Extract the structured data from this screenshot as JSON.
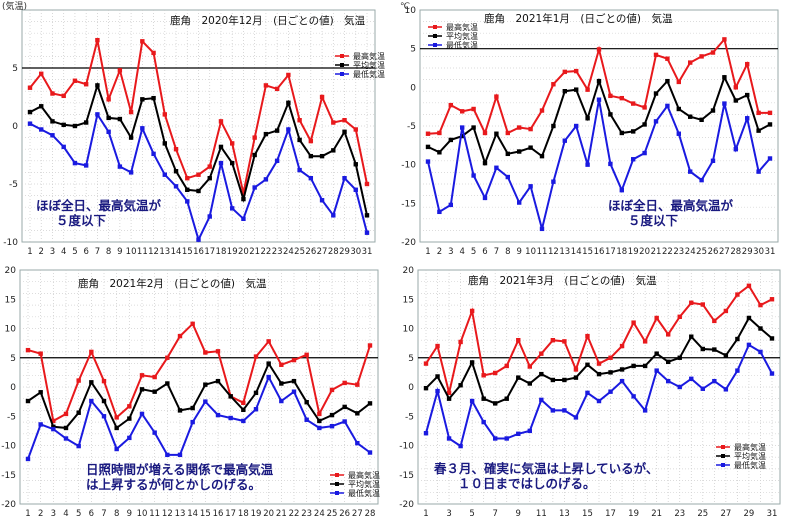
{
  "chart_data": [
    {
      "type": "line",
      "title": "鹿角　2020年12月　(日ごとの値)　気温",
      "ylabel": "",
      "corner_label": "(気温)",
      "x": [
        1,
        2,
        3,
        4,
        5,
        6,
        7,
        8,
        9,
        10,
        11,
        12,
        13,
        14,
        15,
        16,
        17,
        18,
        19,
        20,
        21,
        22,
        23,
        24,
        25,
        26,
        27,
        28,
        29,
        30,
        31
      ],
      "x_ticks": [
        1,
        2,
        3,
        4,
        5,
        6,
        7,
        8,
        9,
        10,
        11,
        12,
        13,
        14,
        15,
        16,
        17,
        18,
        19,
        20,
        21,
        22,
        23,
        24,
        25,
        26,
        27,
        28,
        29,
        30,
        31
      ],
      "ylim": [
        -10,
        10
      ],
      "y_ticks": [
        -10,
        -5,
        0,
        5
      ],
      "reference_line": 5,
      "annotation": [
        "ほぼ全日、最高気温が",
        "５度以下"
      ],
      "series": [
        {
          "name": "最高気温",
          "color": "#e8191c",
          "values": [
            3.3,
            4.5,
            2.8,
            2.6,
            3.9,
            3.6,
            7.4,
            2.3,
            4.8,
            1.2,
            7.3,
            6.3,
            1.0,
            -2.0,
            -4.5,
            -4.2,
            -3.5,
            0.4,
            -1.5,
            -5.8,
            -1.0,
            3.5,
            3.2,
            4.4,
            0.5,
            -1.3,
            2.5,
            0.3,
            0.5,
            -0.3,
            -5.0
          ]
        },
        {
          "name": "平均気温",
          "color": "#000000",
          "values": [
            1.2,
            1.7,
            0.4,
            0.1,
            0.0,
            0.3,
            3.5,
            0.7,
            0.6,
            -1.0,
            2.3,
            2.4,
            -1.5,
            -3.9,
            -5.5,
            -5.6,
            -4.5,
            -1.8,
            -3.2,
            -6.3,
            -2.5,
            -0.7,
            -0.4,
            2.0,
            -1.2,
            -2.6,
            -2.6,
            -2.1,
            -0.5,
            -3.3,
            -7.7
          ]
        },
        {
          "name": "最低気温",
          "color": "#1a1ae0",
          "values": [
            0.2,
            -0.3,
            -0.8,
            -1.8,
            -3.2,
            -3.4,
            1.0,
            -0.5,
            -3.5,
            -4.0,
            -0.2,
            -2.4,
            -4.2,
            -5.2,
            -6.5,
            -9.8,
            -7.8,
            -3.2,
            -7.1,
            -8.0,
            -5.3,
            -4.6,
            -3.0,
            -0.3,
            -3.8,
            -4.5,
            -6.4,
            -7.7,
            -4.5,
            -5.5,
            -9.2
          ]
        }
      ]
    },
    {
      "type": "line",
      "title": "鹿角　2021年1月　(日ごとの値)　気温",
      "ylabel": "",
      "corner_label": "℃",
      "x": [
        1,
        2,
        3,
        4,
        5,
        6,
        7,
        8,
        9,
        10,
        11,
        12,
        13,
        14,
        15,
        16,
        17,
        18,
        19,
        20,
        21,
        22,
        23,
        24,
        25,
        26,
        27,
        28,
        29,
        30,
        31
      ],
      "x_ticks": [
        1,
        2,
        3,
        4,
        5,
        6,
        7,
        8,
        9,
        10,
        11,
        12,
        13,
        14,
        15,
        16,
        17,
        18,
        19,
        20,
        21,
        22,
        23,
        24,
        25,
        26,
        27,
        28,
        29,
        30,
        31
      ],
      "ylim": [
        -20,
        10
      ],
      "y_ticks": [
        -20,
        -15,
        -10,
        -5,
        0,
        5,
        10
      ],
      "reference_line": 5,
      "annotation": [
        "ほぼ全日、最高気温が",
        "５度以下"
      ],
      "series": [
        {
          "name": "最高気温",
          "color": "#e8191c",
          "values": [
            -6.0,
            -5.9,
            -2.3,
            -3.1,
            -2.8,
            -5.9,
            -1.2,
            -5.9,
            -5.2,
            -5.4,
            -3.0,
            0.4,
            2.0,
            2.1,
            -0.3,
            4.9,
            -1.1,
            -1.4,
            -2.1,
            -2.6,
            4.2,
            3.7,
            0.7,
            3.2,
            4.0,
            4.5,
            6.2,
            0.0,
            3.0,
            -3.3,
            -3.3
          ]
        },
        {
          "name": "平均気温",
          "color": "#000000",
          "values": [
            -7.7,
            -8.4,
            -6.8,
            -6.3,
            -5.2,
            -9.8,
            -6.0,
            -8.6,
            -8.3,
            -7.8,
            -8.9,
            -5.0,
            -0.5,
            -0.3,
            -4.0,
            0.8,
            -3.5,
            -5.9,
            -5.7,
            -4.8,
            -0.8,
            0.8,
            -2.8,
            -3.8,
            -4.2,
            -3.0,
            1.3,
            -1.7,
            -1.0,
            -5.6,
            -4.8
          ]
        },
        {
          "name": "最低気温",
          "color": "#1a1ae0",
          "values": [
            -9.6,
            -16.1,
            -15.2,
            -5.2,
            -11.4,
            -14.3,
            -10.4,
            -11.6,
            -14.9,
            -12.8,
            -18.3,
            -12.2,
            -6.9,
            -5.0,
            -10.0,
            -1.6,
            -9.9,
            -13.3,
            -9.3,
            -8.5,
            -4.4,
            -2.4,
            -6.0,
            -10.9,
            -12.0,
            -9.5,
            -2.1,
            -8.0,
            -4.0,
            -10.9,
            -9.2
          ]
        }
      ]
    },
    {
      "type": "line",
      "title": "鹿角　2021年2月　(日ごとの値)　気温",
      "ylabel": "",
      "x": [
        1,
        2,
        3,
        4,
        5,
        6,
        7,
        8,
        9,
        10,
        11,
        12,
        13,
        14,
        15,
        16,
        17,
        18,
        19,
        20,
        21,
        22,
        23,
        24,
        25,
        26,
        27,
        28
      ],
      "x_ticks": [
        1,
        2,
        3,
        4,
        5,
        6,
        7,
        8,
        9,
        10,
        11,
        12,
        13,
        14,
        15,
        16,
        17,
        18,
        19,
        20,
        21,
        22,
        23,
        24,
        25,
        26,
        27,
        28
      ],
      "ylim": [
        -20,
        20
      ],
      "y_ticks": [
        -20,
        -15,
        -10,
        -5,
        0,
        5,
        10,
        15,
        20
      ],
      "reference_line": 5,
      "annotation": [
        "日照時間が増える関係で最高気温",
        "は上昇するが何とかしのげる。"
      ],
      "series": [
        {
          "name": "最高気温",
          "color": "#e8191c",
          "values": [
            6.3,
            5.7,
            -5.8,
            -4.6,
            1.1,
            6.0,
            1.0,
            -5.2,
            -3.3,
            2.0,
            1.7,
            5.0,
            8.7,
            10.8,
            5.9,
            6.1,
            -1.6,
            -2.7,
            5.2,
            7.8,
            3.8,
            4.6,
            5.5,
            -4.6,
            -0.5,
            0.7,
            0.4,
            7.1
          ]
        },
        {
          "name": "平均気温",
          "color": "#000000",
          "values": [
            -2.4,
            -0.9,
            -6.8,
            -7.0,
            -4.4,
            0.8,
            -2.4,
            -7.0,
            -5.4,
            -0.4,
            -0.8,
            0.6,
            -4.0,
            -3.6,
            0.4,
            1.0,
            -1.6,
            -3.9,
            -1.0,
            4.0,
            0.6,
            1.0,
            -2.6,
            -5.8,
            -4.8,
            -3.4,
            -4.5,
            -2.8
          ]
        },
        {
          "name": "最低気温",
          "color": "#1a1ae0",
          "values": [
            -12.3,
            -6.4,
            -7.2,
            -8.8,
            -10.1,
            -2.4,
            -5.0,
            -10.6,
            -8.7,
            -4.6,
            -7.8,
            -11.6,
            -11.6,
            -6.0,
            -2.5,
            -4.8,
            -5.3,
            -5.8,
            -3.8,
            1.7,
            -2.4,
            -0.8,
            -5.6,
            -7.0,
            -6.7,
            -5.9,
            -9.6,
            -11.2
          ]
        }
      ]
    },
    {
      "type": "line",
      "title": "鹿角　2021年3月　(日ごとの値)　気温",
      "ylabel": "",
      "x": [
        1,
        2,
        3,
        4,
        5,
        6,
        7,
        8,
        9,
        10,
        11,
        12,
        13,
        14,
        15,
        16,
        17,
        18,
        19,
        20,
        21,
        22,
        23,
        24,
        25,
        26,
        27,
        28,
        29,
        30,
        31
      ],
      "x_ticks": [
        1,
        3,
        5,
        7,
        9,
        11,
        13,
        15,
        17,
        19,
        21,
        23,
        25,
        27,
        29,
        31
      ],
      "ylim": [
        -20,
        20
      ],
      "y_ticks": [
        -20,
        -15,
        -10,
        -5,
        0,
        5,
        10,
        15,
        20
      ],
      "reference_line": 5,
      "annotation": [
        "春３月、確実に気温は上昇しているが、",
        "１０日まではしのげる。"
      ],
      "series": [
        {
          "name": "最高気温",
          "color": "#e8191c",
          "values": [
            4.0,
            7.0,
            -1.0,
            7.7,
            13.0,
            2.0,
            2.4,
            3.6,
            8.0,
            3.5,
            5.7,
            8.0,
            7.8,
            3.0,
            8.7,
            4.0,
            5.0,
            7.0,
            11.0,
            7.8,
            11.8,
            9.0,
            12.0,
            14.4,
            14.1,
            11.3,
            13.0,
            15.8,
            17.3,
            14.0,
            15.0
          ]
        },
        {
          "name": "平均気温",
          "color": "#000000",
          "values": [
            -0.2,
            1.8,
            -2.0,
            0.3,
            4.2,
            -2.0,
            -2.8,
            -2.0,
            1.6,
            0.6,
            2.2,
            1.2,
            1.2,
            1.6,
            3.8,
            2.2,
            2.5,
            3.0,
            3.6,
            3.6,
            5.7,
            4.3,
            5.0,
            8.6,
            6.5,
            6.4,
            5.4,
            8.2,
            11.8,
            10.0,
            8.3
          ]
        },
        {
          "name": "最低気温",
          "color": "#1a1ae0",
          "values": [
            -7.9,
            -0.7,
            -8.8,
            -10.1,
            -2.4,
            -6.0,
            -8.8,
            -8.8,
            -8.0,
            -7.5,
            -2.2,
            -4.0,
            -4.0,
            -5.2,
            -1.0,
            -2.4,
            -0.8,
            1.0,
            -1.6,
            -4.0,
            2.8,
            1.0,
            0.0,
            1.4,
            -0.3,
            1.0,
            -0.4,
            2.8,
            7.2,
            6.0,
            2.3
          ]
        }
      ]
    }
  ]
}
